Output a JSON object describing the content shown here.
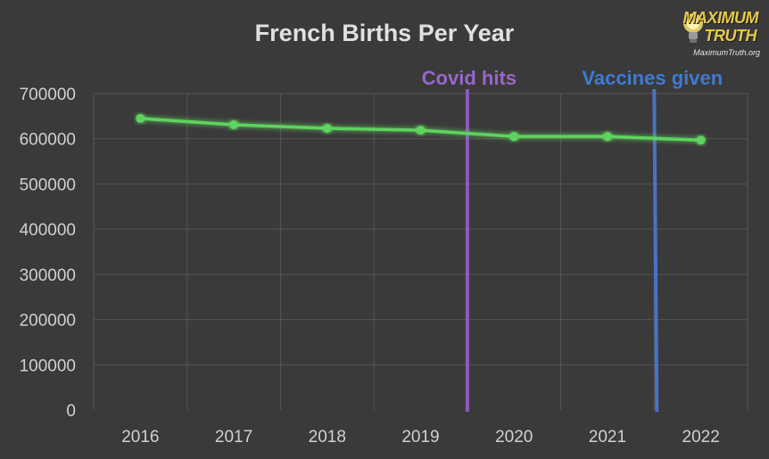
{
  "chart_data": {
    "type": "line",
    "title": "French Births Per Year",
    "categories": [
      "2016",
      "2017",
      "2018",
      "2019",
      "2020",
      "2021",
      "2022"
    ],
    "series": [
      {
        "values": [
          645000,
          631000,
          623000,
          619000,
          605000,
          605000,
          597000
        ],
        "color": "#5fd35f"
      }
    ],
    "ylim": [
      0,
      700000
    ],
    "yticks": [
      "0",
      "100000",
      "200000",
      "300000",
      "400000",
      "500000",
      "600000",
      "700000"
    ],
    "grid": true,
    "annotations": [
      {
        "label": "Covid hits",
        "x": "2019.5",
        "color": "#8a5bc0",
        "text_color": "#9966cc"
      },
      {
        "label": "Vaccines given",
        "x": "2021.5",
        "color": "#4a72c4",
        "text_color": "#3d7ad6"
      }
    ],
    "colors": {
      "background": "#3a3a3a",
      "grid": "#555555",
      "text": "#d0d0d0"
    }
  },
  "logo": {
    "word1": "MAXIMUM",
    "word2": "TRUTH",
    "url": "MaximumTruth.org"
  }
}
